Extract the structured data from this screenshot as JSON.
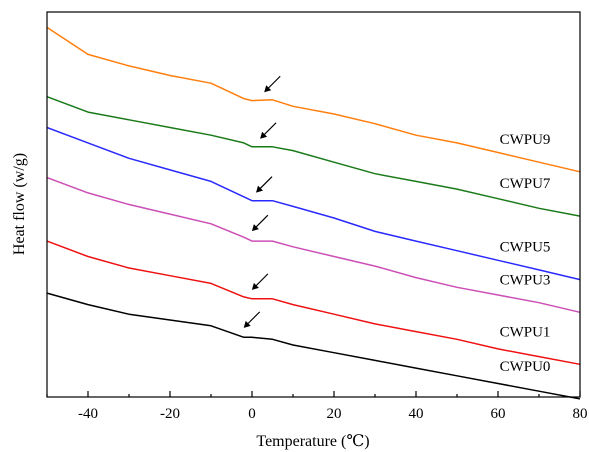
{
  "chart_data": {
    "type": "line",
    "title": "",
    "xlabel": "Temperature (℃)",
    "ylabel": "Heat flow (w/g)",
    "xlim": [
      -50,
      80
    ],
    "ylim": [
      0,
      100
    ],
    "y_ticks_shown": false,
    "x_ticks": [
      -40,
      -20,
      0,
      20,
      40,
      60,
      80
    ],
    "x_tick_labels": [
      "-40",
      "-20",
      "0",
      "20",
      "40",
      "60",
      "80"
    ],
    "grid": false,
    "legend": "none (labels placed beside curves)",
    "x": [
      -50,
      -40,
      -30,
      -20,
      -10,
      -2,
      0,
      5,
      10,
      20,
      30,
      40,
      50,
      60,
      70,
      80
    ],
    "series": [
      {
        "name": "CWPU9",
        "color": "#ff7f0e",
        "values": [
          96,
          89,
          86,
          83.5,
          81.5,
          77.5,
          77,
          77.2,
          75.5,
          73.5,
          71,
          68,
          66,
          63.5,
          61,
          58.5
        ],
        "arrow_at": 2
      },
      {
        "name": "CWPU7",
        "color": "#1a7a1a",
        "values": [
          78,
          74,
          72,
          70,
          68,
          66,
          65,
          65,
          64,
          61,
          58,
          56,
          54,
          51.5,
          49,
          47
        ],
        "arrow_at": 1
      },
      {
        "name": "CWPU5",
        "color": "#2a2aff",
        "values": [
          70,
          66,
          62,
          59,
          56,
          52,
          51,
          51,
          49.5,
          46.5,
          43,
          40.5,
          38,
          35.5,
          33,
          30.5
        ],
        "arrow_at": 0
      },
      {
        "name": "CWPU3",
        "color": "#cc4fb6",
        "values": [
          57,
          53,
          50,
          47.5,
          45,
          41.5,
          40.5,
          40.5,
          39,
          36.5,
          34,
          31,
          28.5,
          26.5,
          24.5,
          22
        ],
        "arrow_at": -1
      },
      {
        "name": "CWPU1",
        "color": "#ee1111",
        "values": [
          40.5,
          36.5,
          33.5,
          31.5,
          29.5,
          26,
          25.5,
          25.5,
          24,
          21.5,
          19,
          17,
          15,
          12.5,
          10.5,
          8.5
        ],
        "arrow_at": -1
      },
      {
        "name": "CWPU0",
        "color": "#000000",
        "values": [
          27,
          24,
          21.5,
          20,
          18.5,
          15.5,
          15.5,
          15,
          13.5,
          11.5,
          9.5,
          7.5,
          5.5,
          3.5,
          1.5,
          -0.5
        ],
        "arrow_at": -3
      }
    ]
  }
}
